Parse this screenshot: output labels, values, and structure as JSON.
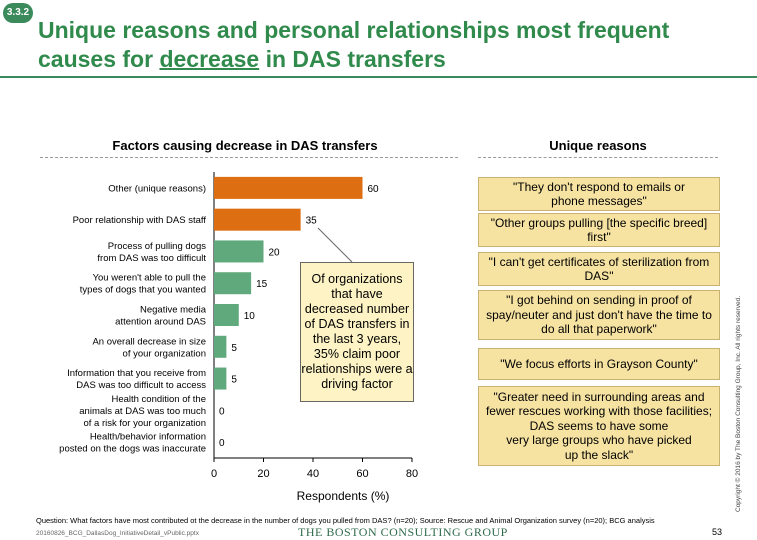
{
  "section_tag": "3.3.2",
  "title": {
    "before": "Unique reasons and personal relationships most frequent causes for ",
    "underlined": "decrease",
    "after": " in DAS transfers"
  },
  "left_heading": "Factors causing decrease in DAS transfers",
  "right_heading": "Unique reasons",
  "callout": "Of organizations that have decreased number of DAS transfers in the last 3 years, 35% claim poor relationships were a driving factor",
  "reasons": [
    "\"They don't respond to emails or\nphone messages\"",
    "\"Other groups pulling [the specific breed]\nfirst\"",
    "\"I can't get certificates of sterilization from\nDAS\"",
    "\"I got behind on sending in proof of\nspay/neuter and just don't have the time to\ndo all that paperwork\"",
    "\"We focus efforts in Grayson County\"",
    "\"Greater need in surrounding areas and\nfewer rescues working with those facilities;\nDAS seems to have some\nvery large groups who have picked\nup the slack\""
  ],
  "chart_data": {
    "type": "bar",
    "orientation": "horizontal",
    "categories": [
      [
        "Other (unique reasons)"
      ],
      [
        "Poor relationship with DAS staff"
      ],
      [
        "Process of pulling dogs",
        "from DAS was too difficult"
      ],
      [
        "You weren't able to pull the",
        "types of dogs that you wanted"
      ],
      [
        "Negative media",
        "attention around DAS"
      ],
      [
        "An overall decrease in size",
        "of your organization"
      ],
      [
        "Information that you receive from",
        "DAS was too difficult to access"
      ],
      [
        "Health condition of the",
        "animals at DAS was too much",
        "of a risk for your organization"
      ],
      [
        "Health/behavior information",
        "posted on the dogs was inaccurate"
      ]
    ],
    "values": [
      60,
      35,
      20,
      15,
      10,
      5,
      5,
      0,
      0
    ],
    "data_labels": [
      "60",
      "35",
      "20",
      "15",
      "10",
      "5",
      "5",
      "0",
      "0"
    ],
    "bar_colors": [
      "#dd6e11",
      "#dd6e11",
      "#5fa97c",
      "#5fa97c",
      "#5fa97c",
      "#5fa97c",
      "#5fa97c",
      "#5fa97c",
      "#5fa97c"
    ],
    "xlabel": "Respondents (%)",
    "xlim": [
      0,
      80
    ],
    "xticks": [
      0,
      20,
      40,
      60,
      80
    ]
  },
  "footnote": "Question: What factors have most contributed ot the decrease in the number of dogs you pulled from DAS? (n=20); Source: Rescue and Animal Organization survey (n=20); BCG analysis",
  "file_name": "20160826_BCG_DallasDog_InitiativeDetail_vPublic.pptx",
  "logo_text": "THE BOSTON CONSULTING GROUP",
  "copyright": "Copyright © 2016 by The Boston Consulting Group, Inc. All rights reserved.",
  "page_number": "53"
}
